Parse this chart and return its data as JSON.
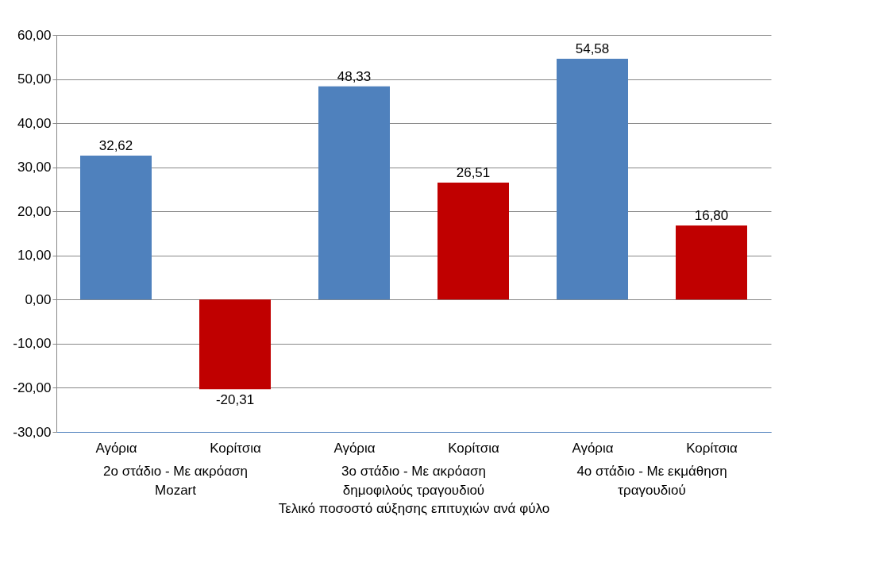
{
  "chart_data": {
    "type": "bar",
    "xlabel": "Τελικό ποσοστό αύξησης επιτυχιών ανά φύλο",
    "categories": [
      "Αγόρια",
      "Κορίτσια",
      "Αγόρια",
      "Κορίτσια",
      "Αγόρια",
      "Κορίτσια"
    ],
    "values": [
      32.62,
      -20.31,
      48.33,
      26.51,
      54.58,
      16.8
    ],
    "colors": [
      "#4f81bd",
      "#c00000",
      "#4f81bd",
      "#c00000",
      "#4f81bd",
      "#c00000"
    ],
    "value_labels": [
      "32,62",
      "-20,31",
      "48,33",
      "26,51",
      "54,58",
      "16,80"
    ],
    "annotations": [
      "2ο στάδιο - Με ακρόαση Mozart",
      "3ο στάδιο - Με ακρόαση δημοφιλούς τραγουδιού",
      "4ο στάδιο - Με εκμάθηση τραγουδιού"
    ],
    "ylim": [
      -30,
      60
    ],
    "yticks": [
      {
        "value": -30,
        "label": "-30,00"
      },
      {
        "value": -20,
        "label": "-20,00"
      },
      {
        "value": -10,
        "label": "-10,00"
      },
      {
        "value": 0,
        "label": "0,00"
      },
      {
        "value": 10,
        "label": "10,00"
      },
      {
        "value": 20,
        "label": "20,00"
      },
      {
        "value": 30,
        "label": "30,00"
      },
      {
        "value": 40,
        "label": "40,00"
      },
      {
        "value": 50,
        "label": "50,00"
      },
      {
        "value": 60,
        "label": "60,00"
      }
    ],
    "grid": "y"
  }
}
